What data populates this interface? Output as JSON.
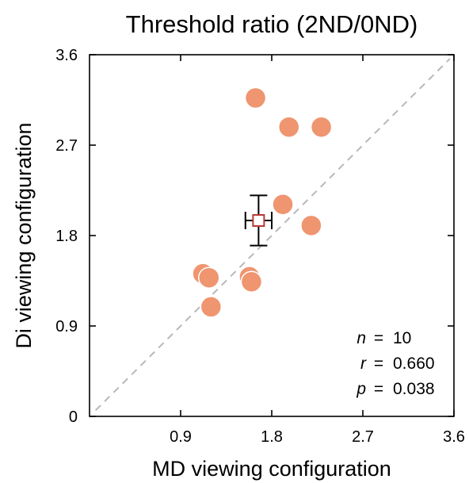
{
  "chart_data": {
    "type": "scatter",
    "title": "Threshold ratio (2ND/0ND)",
    "xlabel": "MD viewing configuration",
    "ylabel": "Di viewing configuration",
    "xlim": [
      0,
      3.6
    ],
    "ylim": [
      0,
      3.6
    ],
    "x_ticks": [
      0.9,
      1.8,
      2.7,
      3.6
    ],
    "x_tick_labels": [
      "0.9",
      "1.8",
      "2.7",
      "3.6"
    ],
    "y_ticks": [
      0,
      0.9,
      1.8,
      2.7,
      3.6
    ],
    "y_tick_labels": [
      "0",
      "0.9",
      "1.8",
      "2.7",
      "3.6"
    ],
    "grid": false,
    "points": [
      {
        "x": 1.64,
        "y": 3.17
      },
      {
        "x": 1.97,
        "y": 2.88
      },
      {
        "x": 2.29,
        "y": 2.88
      },
      {
        "x": 1.91,
        "y": 2.11
      },
      {
        "x": 2.19,
        "y": 1.9
      },
      {
        "x": 1.12,
        "y": 1.42
      },
      {
        "x": 1.18,
        "y": 1.38
      },
      {
        "x": 1.58,
        "y": 1.39
      },
      {
        "x": 1.6,
        "y": 1.34
      },
      {
        "x": 1.2,
        "y": 1.09
      }
    ],
    "mean": {
      "x": 1.67,
      "y": 1.95,
      "x_err": 0.13,
      "y_err": 0.25
    },
    "reference_line": "identity",
    "point_color": "#ef9570",
    "mean_color": "#b83a36",
    "reference_line_color": "#b8b8b8",
    "stats": [
      {
        "var": "n",
        "eq": "=",
        "value": "10"
      },
      {
        "var": "r",
        "eq": "=",
        "value": "0.660"
      },
      {
        "var": "p",
        "eq": "=",
        "value": "0.038"
      }
    ]
  }
}
